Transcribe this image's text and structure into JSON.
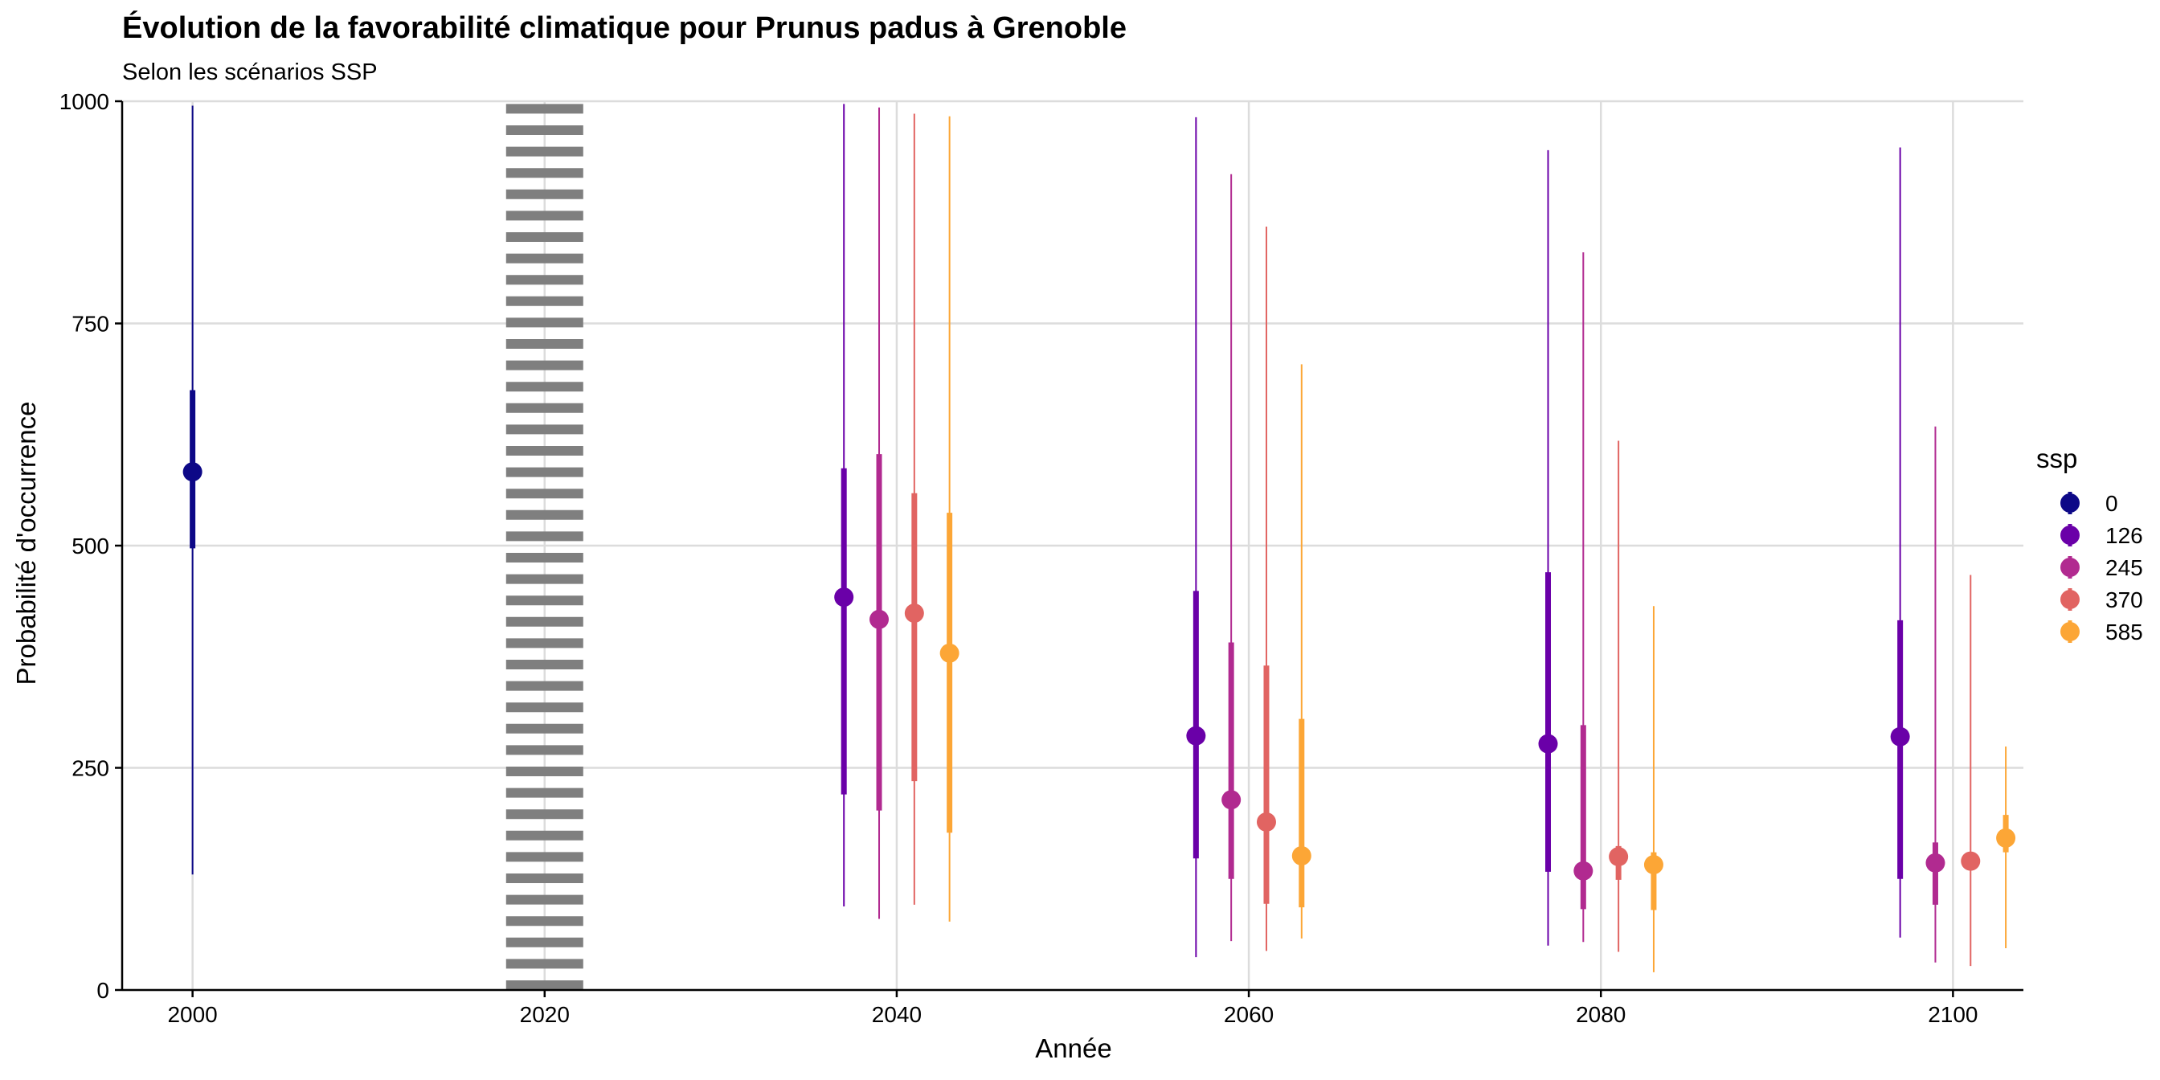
{
  "chart_data": {
    "type": "scatter",
    "title": "Évolution de la favorabilité climatique pour Prunus padus à Grenoble",
    "subtitle": "Selon les scénarios SSP",
    "xlabel": "Année",
    "ylabel": "Probabilité d'occurrence",
    "xlim": [
      1996,
      2104
    ],
    "ylim": [
      0,
      1000
    ],
    "x_ticks": [
      2000,
      2020,
      2040,
      2060,
      2080,
      2100
    ],
    "y_ticks": [
      0,
      250,
      500,
      750,
      1000
    ],
    "grid": true,
    "reference_line": {
      "x": 2020,
      "style": "dotted",
      "color": "#7f7f7f"
    },
    "legend": {
      "title": "ssp",
      "position": "right"
    },
    "series": [
      {
        "name": "0",
        "color": "#0d0887",
        "points": [
          {
            "x": 2000,
            "y": 583,
            "inner": [
              497,
              675
            ],
            "outer": [
              130,
              995
            ]
          }
        ]
      },
      {
        "name": "126",
        "color": "#6a00a8",
        "points": [
          {
            "x": 2037,
            "y": 442,
            "inner": [
              220,
              587
            ],
            "outer": [
              94,
              997
            ]
          },
          {
            "x": 2057,
            "y": 286,
            "inner": [
              148,
              449
            ],
            "outer": [
              37,
              982
            ]
          },
          {
            "x": 2077,
            "y": 277,
            "inner": [
              133,
              470
            ],
            "outer": [
              50,
              945
            ]
          },
          {
            "x": 2097,
            "y": 285,
            "inner": [
              125,
              416
            ],
            "outer": [
              59,
              948
            ]
          }
        ]
      },
      {
        "name": "245",
        "color": "#b12a90",
        "points": [
          {
            "x": 2039,
            "y": 417,
            "inner": [
              202,
              603
            ],
            "outer": [
              80,
              993
            ]
          },
          {
            "x": 2059,
            "y": 214,
            "inner": [
              125,
              391
            ],
            "outer": [
              55,
              918
            ]
          },
          {
            "x": 2079,
            "y": 134,
            "inner": [
              91,
              298
            ],
            "outer": [
              54,
              830
            ]
          },
          {
            "x": 2099,
            "y": 143,
            "inner": [
              96,
              166
            ],
            "outer": [
              31,
              634
            ]
          }
        ]
      },
      {
        "name": "370",
        "color": "#e16462",
        "points": [
          {
            "x": 2041,
            "y": 424,
            "inner": [
              235,
              559
            ],
            "outer": [
              96,
              986
            ]
          },
          {
            "x": 2061,
            "y": 189,
            "inner": [
              97,
              365
            ],
            "outer": [
              44,
              859
            ]
          },
          {
            "x": 2081,
            "y": 150,
            "inner": [
              124,
              162
            ],
            "outer": [
              43,
              618
            ]
          },
          {
            "x": 2101,
            "y": 145,
            "inner": [
              136,
              153
            ],
            "outer": [
              27,
              467
            ]
          }
        ]
      },
      {
        "name": "585",
        "color": "#fca636",
        "points": [
          {
            "x": 2043,
            "y": 379,
            "inner": [
              177,
              537
            ],
            "outer": [
              77,
              983
            ]
          },
          {
            "x": 2063,
            "y": 151,
            "inner": [
              93,
              305
            ],
            "outer": [
              58,
              704
            ]
          },
          {
            "x": 2083,
            "y": 141,
            "inner": [
              90,
              155
            ],
            "outer": [
              20,
              432
            ]
          },
          {
            "x": 2103,
            "y": 171,
            "inner": [
              155,
              197
            ],
            "outer": [
              47,
              274
            ]
          }
        ]
      }
    ]
  }
}
